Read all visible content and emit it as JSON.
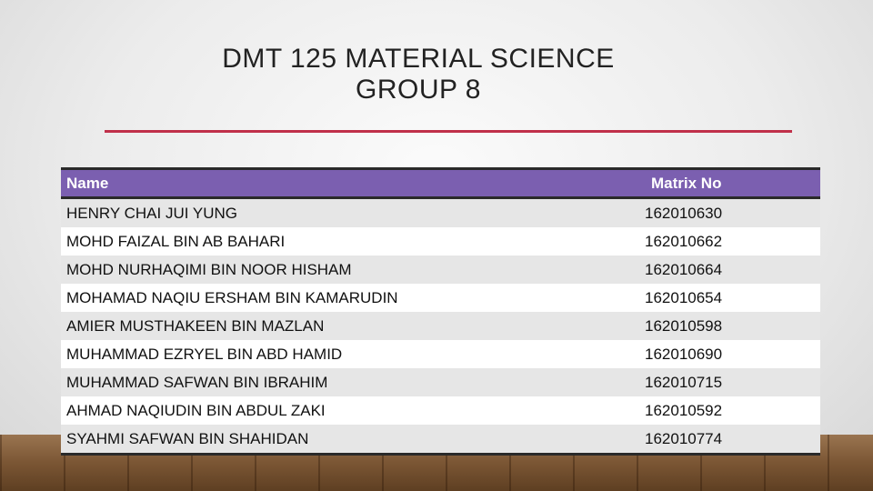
{
  "header": {
    "title": [
      "DMT 125 MATERIAL SCIENCE",
      "GROUP 8"
    ]
  },
  "table": {
    "columns": [
      "Name",
      "Matrix No"
    ],
    "rows": [
      [
        "HENRY CHAI JUI YUNG",
        "162010630"
      ],
      [
        "MOHD FAIZAL BIN AB BAHARI",
        "162010662"
      ],
      [
        "MOHD NURHAQIMI BIN NOOR HISHAM",
        "162010664"
      ],
      [
        "MOHAMAD NAQIU ERSHAM BIN KAMARUDIN",
        "162010654"
      ],
      [
        "AMIER MUSTHAKEEN BIN MAZLAN",
        "162010598"
      ],
      [
        "MUHAMMAD EZRYEL BIN ABD HAMID",
        "162010690"
      ],
      [
        "MUHAMMAD SAFWAN BIN IBRAHIM",
        "162010715"
      ],
      [
        "AHMAD NAQIUDIN BIN ABDUL ZAKI",
        "162010592"
      ],
      [
        "SYAHMI SAFWAN BIN SHAHIDAN",
        "162010774"
      ]
    ]
  }
}
